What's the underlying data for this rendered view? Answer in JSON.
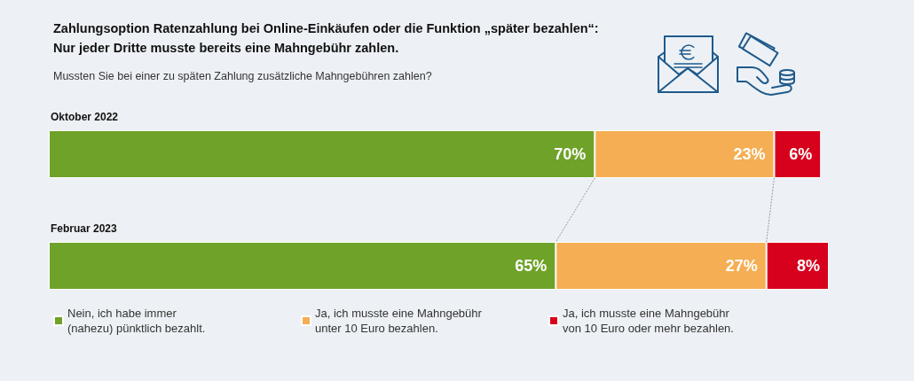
{
  "chart_data": {
    "type": "bar",
    "orientation": "horizontal",
    "stacked": true,
    "title": "Zahlungsoption Ratenzahlung bei Online-Einkäufen oder die Funktion „später bezahlen“:\nNur jeder Dritte musste bereits eine Mahngebühr zahlen.",
    "subtitle": "Mussten Sie bei einer zu späten Zahlung zusätzliche Mahngebühren zahlen?",
    "categories": [
      "Oktober 2022",
      "Februar 2023"
    ],
    "series": [
      {
        "name": "Nein, ich habe immer\n(nahezu) pünktlich bezahlt.",
        "color": "#6fa228",
        "values": [
          70,
          65
        ],
        "value_labels": [
          "70%",
          "65%"
        ]
      },
      {
        "name": "Ja, ich musste eine Mahngebühr\nunter 10 Euro bezahlen.",
        "color": "#f5ae53",
        "values": [
          23,
          27
        ],
        "value_labels": [
          "23%",
          "27%"
        ]
      },
      {
        "name": "Ja, ich musste eine Mahngebühr\nvon 10 Euro oder mehr bezahlen.",
        "color": "#d7001d",
        "values": [
          6,
          8
        ],
        "value_labels": [
          "6%",
          "8%"
        ]
      }
    ],
    "legend": "bottom",
    "tick_labels": "y"
  }
}
